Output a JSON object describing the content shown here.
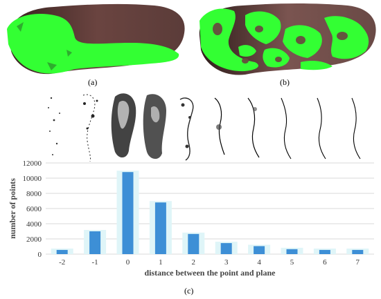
{
  "labels": {
    "a": "(a)",
    "b": "(b)",
    "c": "(c)"
  },
  "colors": {
    "highlight": "#33ff33",
    "foot": "#5a3a36",
    "bar": "#3d8fd6",
    "bar_halo": "#dff5f8",
    "grid": "#d9d9d9"
  },
  "chart_data": {
    "type": "bar",
    "title": "",
    "xlabel": "distance between the point and plane",
    "ylabel": "number of points",
    "categories": [
      "-2",
      "-1",
      "0",
      "1",
      "2",
      "3",
      "4",
      "5",
      "6",
      "7"
    ],
    "values": [
      550,
      3000,
      10800,
      6800,
      2650,
      1450,
      1050,
      650,
      550,
      550
    ],
    "ylim": [
      0,
      12000
    ],
    "yticks": [
      "0",
      "2000",
      "4000",
      "6000",
      "8000",
      "10000",
      "12000"
    ],
    "grid": true
  }
}
